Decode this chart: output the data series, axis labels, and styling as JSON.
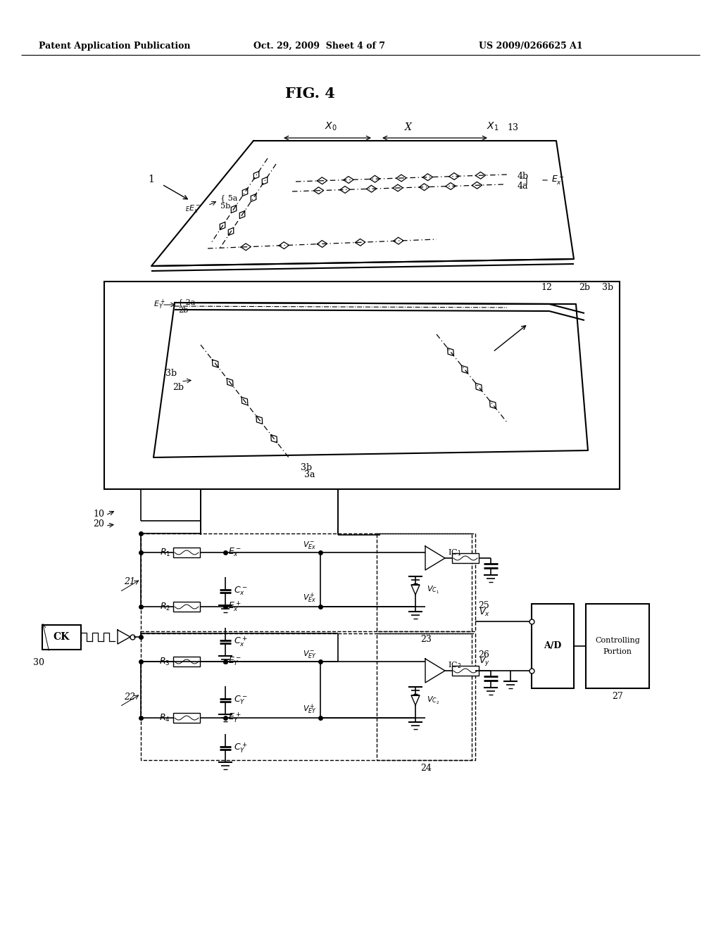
{
  "title": "FIG. 4",
  "header_left": "Patent Application Publication",
  "header_center": "Oct. 29, 2009  Sheet 4 of 7",
  "header_right": "US 2009/0266625 A1",
  "bg_color": "#ffffff",
  "text_color": "#000000"
}
